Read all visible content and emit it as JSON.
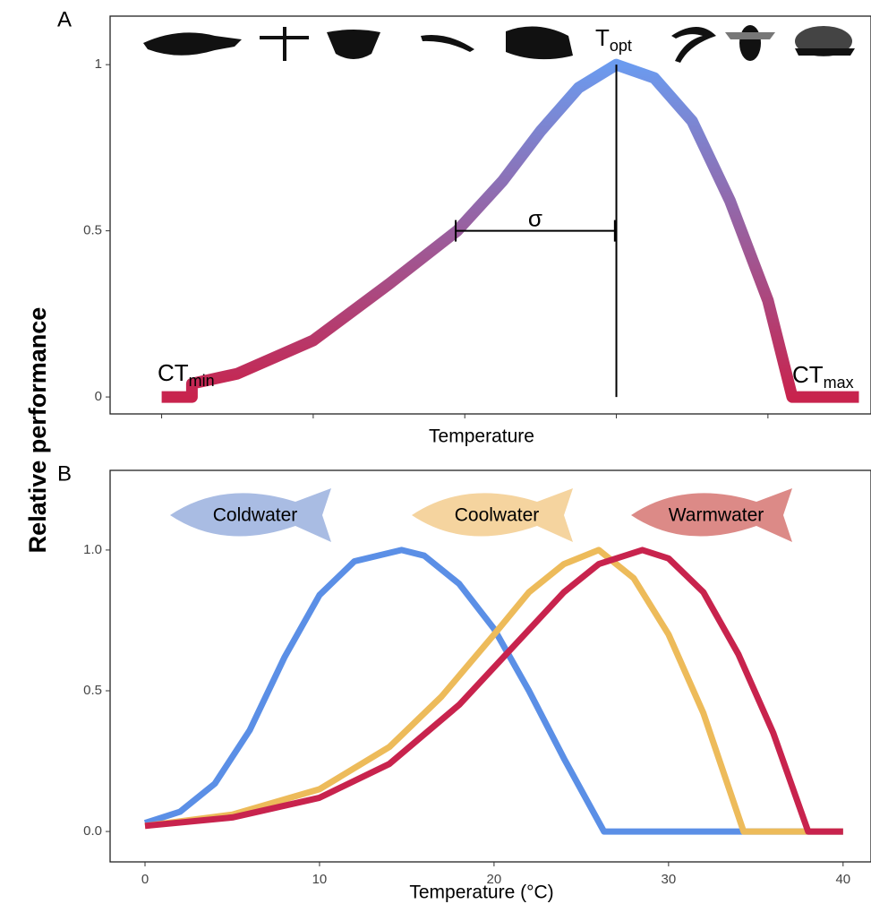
{
  "ylabel": "Relative performance",
  "chart_data": [
    {
      "type": "line",
      "panel": "A",
      "xlabel": "Temperature",
      "xlim": [
        -0.34,
        4.68
      ],
      "xticks": [
        0,
        1,
        2,
        3,
        4
      ],
      "xtick_labels": false,
      "ylim": [
        -0.051,
        1.146
      ],
      "yticks": [
        0,
        0.5,
        1
      ],
      "series": [
        {
          "gradient": [
            "#c8234d",
            "#6b9bef"
          ],
          "x": [
            0,
            0.2,
            0.2,
            0.5,
            1.0,
            1.5,
            1.95,
            2.25,
            2.5,
            2.75,
            3.0,
            3.25,
            3.5,
            3.75,
            4.0,
            4.16,
            4.6
          ],
          "values": [
            0,
            0,
            0.04,
            0.07,
            0.17,
            0.34,
            0.5,
            0.65,
            0.8,
            0.93,
            1,
            0.96,
            0.83,
            0.59,
            0.29,
            0,
            0
          ]
        }
      ],
      "topt": 3.0,
      "sigma": {
        "label": "σ",
        "from": 1.94,
        "to": 2.99,
        "y": 0.5
      },
      "annotations": [
        {
          "text": "CT",
          "sub": "min"
        },
        {
          "text": "T",
          "sub": "opt"
        },
        {
          "text": "CT",
          "sub": "max"
        }
      ]
    },
    {
      "type": "line",
      "panel": "B",
      "xlabel": "Temperature (°C)",
      "xlim": [
        -2,
        41.6
      ],
      "xticks": [
        0,
        10,
        20,
        30,
        40
      ],
      "ylim": [
        -0.108,
        1.283
      ],
      "yticks": [
        {
          "value": 0,
          "label": "0.0"
        },
        0.5,
        {
          "value": 1,
          "label": "1.0"
        }
      ],
      "series": [
        {
          "name": "Coldwater",
          "color": "#5b8fe6",
          "fish_color": "#a9bce3",
          "x": [
            0,
            2,
            4,
            6,
            8,
            10,
            12,
            14.7,
            16,
            18,
            20,
            22,
            24,
            26.3,
            40
          ],
          "values": [
            0.03,
            0.07,
            0.17,
            0.36,
            0.62,
            0.84,
            0.96,
            1,
            0.98,
            0.88,
            0.72,
            0.5,
            0.26,
            0,
            0
          ]
        },
        {
          "name": "Coolwater",
          "color": "#edbb5a",
          "fish_color": "#f5d49f",
          "x": [
            0,
            5,
            10,
            14,
            17,
            20,
            22,
            24,
            26,
            28,
            30,
            32,
            34.3,
            40
          ],
          "values": [
            0.02,
            0.06,
            0.15,
            0.3,
            0.48,
            0.7,
            0.85,
            0.95,
            1,
            0.9,
            0.7,
            0.42,
            0,
            0
          ]
        },
        {
          "name": "Warmwater",
          "color": "#c8234d",
          "fish_color": "#dc8a87",
          "x": [
            0,
            5,
            10,
            14,
            18,
            21,
            24,
            26,
            28.5,
            30,
            32,
            34,
            36,
            38,
            40
          ],
          "values": [
            0.02,
            0.05,
            0.12,
            0.24,
            0.45,
            0.65,
            0.85,
            0.95,
            1,
            0.97,
            0.85,
            0.63,
            0.35,
            0,
            0
          ]
        }
      ]
    }
  ]
}
